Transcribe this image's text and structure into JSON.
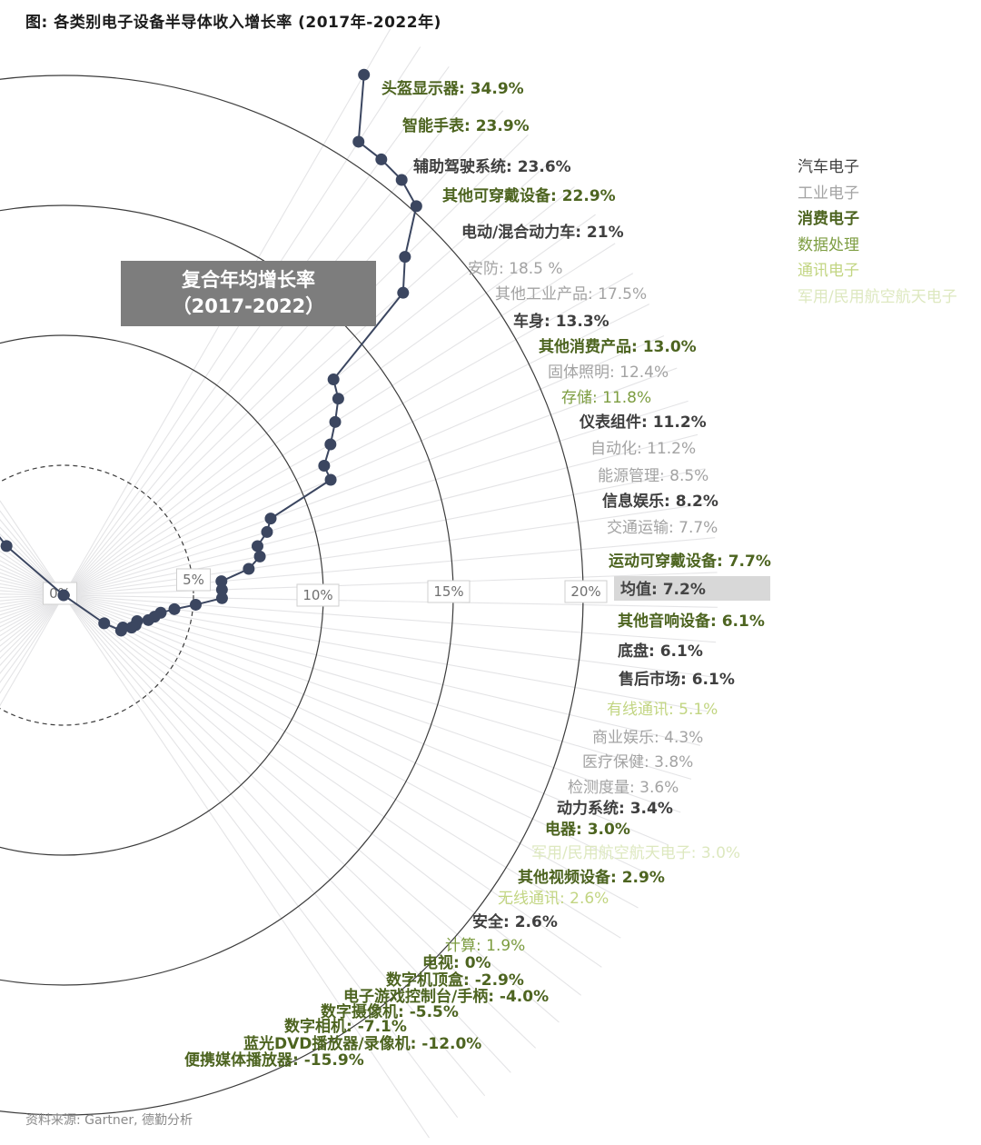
{
  "title": "图: 各类别电子设备半导体收入增长率 (2017年-2022年)",
  "source": "资料来源: Gartner, 德勤分析",
  "cagr_box": {
    "line1": "复合年均增长率",
    "line2": "（2017-2022）"
  },
  "legend": {
    "items": [
      {
        "label": "汽车电子",
        "category": "automotive"
      },
      {
        "label": "工业电子",
        "category": "industrial"
      },
      {
        "label": "消费电子",
        "category": "consumer"
      },
      {
        "label": "数据处理",
        "category": "data_processing"
      },
      {
        "label": "通讯电子",
        "category": "communications"
      },
      {
        "label": "军用/民用航空航天电子",
        "category": "military_aero"
      }
    ]
  },
  "colors": {
    "automotive": "#3f3f3f",
    "industrial": "#a3a3a3",
    "consumer": "#4d6420",
    "data_processing": "#7d9d41",
    "communications": "#c2d582",
    "military_aero": "#dde8bf",
    "mean_text": "#454545",
    "mean_bg": "#d8d8d8",
    "line": "#3b4660",
    "ray": "#e4e4e6",
    "ring": "#3c3c3c",
    "tick_text": "#6f6f6f",
    "tick_border": "#cfcfcf",
    "tick_bg": "#ffffff"
  },
  "chart_data": {
    "type": "radial_spiral",
    "unit": "%",
    "separator": ": ",
    "axis_ticks": [
      "0%",
      "5%",
      "10%",
      "15%",
      "20%"
    ],
    "axis_range": [
      0,
      20
    ],
    "items": [
      {
        "label": "头盔显示器",
        "value_display": "34.9%",
        "value": 34.9,
        "category": "consumer"
      },
      {
        "label": "智能手表",
        "value_display": "23.9%",
        "value": 23.9,
        "category": "consumer"
      },
      {
        "label": "辅助驾驶系统",
        "value_display": "23.6%",
        "value": 23.6,
        "category": "automotive"
      },
      {
        "label": "其他可穿戴设备",
        "value_display": "22.9%",
        "value": 22.9,
        "category": "consumer"
      },
      {
        "label": "电动/混合动力车",
        "value_display": "21%",
        "value": 21,
        "category": "automotive"
      },
      {
        "label": "安防",
        "value_display": "18.5 %",
        "value": 18.5,
        "category": "industrial"
      },
      {
        "label": "其他工业产品",
        "value_display": "17.5%",
        "value": 17.5,
        "category": "industrial"
      },
      {
        "label": "车身",
        "value_display": "13.3%",
        "value": 13.3,
        "category": "automotive"
      },
      {
        "label": "其他消费产品",
        "value_display": "13.0%",
        "value": 13.0,
        "category": "consumer"
      },
      {
        "label": "固体照明",
        "value_display": "12.4%",
        "value": 12.4,
        "category": "industrial"
      },
      {
        "label": "存储",
        "value_display": "11.8%",
        "value": 11.8,
        "category": "data_processing"
      },
      {
        "label": "仪表组件",
        "value_display": "11.2%",
        "value": 11.2,
        "category": "automotive"
      },
      {
        "label": "自动化",
        "value_display": "11.2%",
        "value": 11.2,
        "category": "industrial"
      },
      {
        "label": "能源管理",
        "value_display": "8.5%",
        "value": 8.5,
        "category": "industrial"
      },
      {
        "label": "信息娱乐",
        "value_display": "8.2%",
        "value": 8.2,
        "category": "automotive"
      },
      {
        "label": "交通运输",
        "value_display": "7.7%",
        "value": 7.7,
        "category": "industrial"
      },
      {
        "label": "运动可穿戴设备",
        "value_display": "7.7%",
        "value": 7.7,
        "category": "consumer"
      },
      {
        "label": "均值",
        "value_display": "7.2%",
        "value": 7.2,
        "category": "mean",
        "highlight": true
      },
      {
        "label": "其他音响设备",
        "value_display": "6.1%",
        "value": 6.1,
        "category": "consumer"
      },
      {
        "label": "底盘",
        "value_display": "6.1%",
        "value": 6.1,
        "category": "automotive"
      },
      {
        "label": "售后市场",
        "value_display": "6.1%",
        "value": 6.1,
        "category": "automotive"
      },
      {
        "label": "有线通讯",
        "value_display": "5.1%",
        "value": 5.1,
        "category": "communications"
      },
      {
        "label": "商业娱乐",
        "value_display": "4.3%",
        "value": 4.3,
        "category": "industrial"
      },
      {
        "label": "医疗保健",
        "value_display": "3.8%",
        "value": 3.8,
        "category": "industrial"
      },
      {
        "label": "检测度量",
        "value_display": "3.6%",
        "value": 3.6,
        "category": "industrial"
      },
      {
        "label": "动力系统",
        "value_display": "3.4%",
        "value": 3.4,
        "category": "automotive"
      },
      {
        "label": "电器",
        "value_display": "3.0%",
        "value": 3.0,
        "category": "consumer"
      },
      {
        "label": "军用/民用航空航天电子",
        "value_display": "3.0%",
        "value": 3.0,
        "category": "military_aero"
      },
      {
        "label": "其他视频设备",
        "value_display": "2.9%",
        "value": 2.9,
        "category": "consumer"
      },
      {
        "label": "无线通讯",
        "value_display": "2.6%",
        "value": 2.6,
        "category": "communications"
      },
      {
        "label": "安全",
        "value_display": "2.6%",
        "value": 2.6,
        "category": "automotive"
      },
      {
        "label": "计算",
        "value_display": "1.9%",
        "value": 1.9,
        "category": "data_processing"
      },
      {
        "label": "电视",
        "value_display": "0%",
        "value": 0,
        "category": "consumer"
      },
      {
        "label": "数字机顶盒",
        "value_display": "-2.9%",
        "value": -2.9,
        "category": "consumer"
      },
      {
        "label": "电子游戏控制台/手柄",
        "value_display": "-4.0%",
        "value": -4.0,
        "category": "consumer"
      },
      {
        "label": "数字摄像机",
        "value_display": "-5.5%",
        "value": -5.5,
        "category": "consumer"
      },
      {
        "label": "数字相机",
        "value_display": "-7.1%",
        "value": -7.1,
        "category": "consumer"
      },
      {
        "label": "蓝光DVD播放器/录像机",
        "value_display": "-12.0%",
        "value": -12.0,
        "category": "consumer"
      },
      {
        "label": "便携媒体播放器",
        "value_display": "-15.9%",
        "value": -15.9,
        "category": "consumer"
      }
    ]
  }
}
